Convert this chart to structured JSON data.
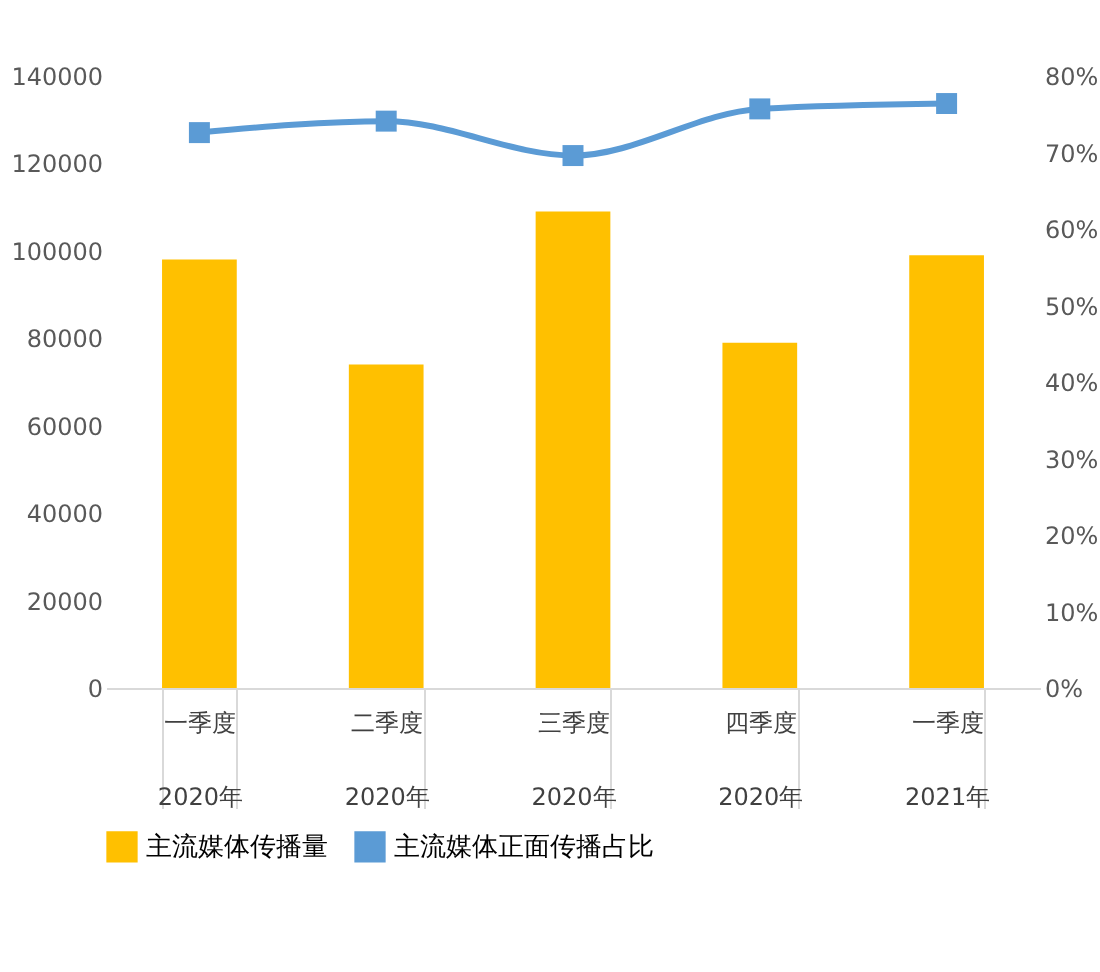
{
  "chart_data": {
    "type": "bar",
    "categories": [
      "一季度\n2020年",
      "二季度\n2020年",
      "三季度\n2020年",
      "四季度\n2020年",
      "一季度\n2021年"
    ],
    "series": [
      {
        "name": "主流媒体传播量",
        "color": "#ffc000",
        "values": [
          98000,
          74000,
          109000,
          79000,
          99000
        ]
      },
      {
        "name": "主流媒体正面传播占比",
        "type": "line",
        "axis": "y2",
        "color": "#5b9bd5",
        "values": [
          72.6,
          74.1,
          69.6,
          75.7,
          76.4
        ]
      }
    ],
    "ylim": [
      0,
      140000
    ],
    "yticks": [
      0,
      20000,
      40000,
      60000,
      80000,
      100000,
      120000,
      140000
    ],
    "y2lim": [
      0,
      80
    ],
    "y2ticks": [
      {
        "value": 0,
        "label": "0%"
      },
      {
        "value": 10,
        "label": "10%"
      },
      {
        "value": 20,
        "label": "20%"
      },
      {
        "value": 30,
        "label": "30%"
      },
      {
        "value": 40,
        "label": "40%"
      },
      {
        "value": 50,
        "label": "50%"
      },
      {
        "value": 60,
        "label": "60%"
      },
      {
        "value": 70,
        "label": "70%"
      },
      {
        "value": 80,
        "label": "80%"
      }
    ],
    "grid": false,
    "legend": "bottom",
    "marker": "square"
  }
}
